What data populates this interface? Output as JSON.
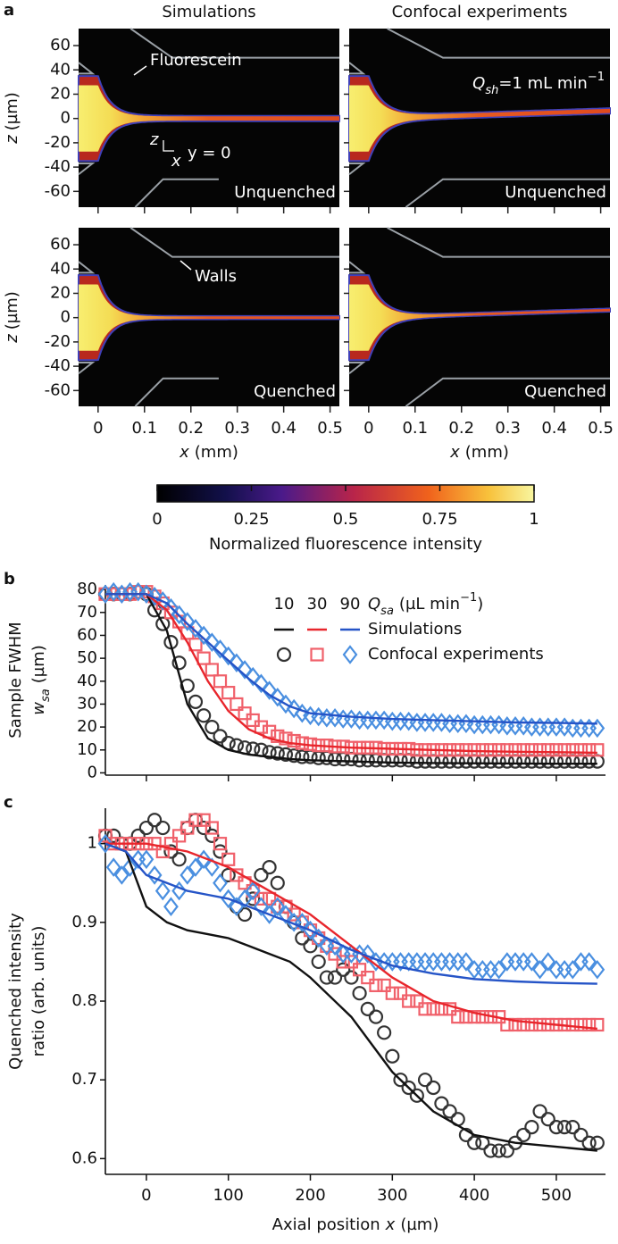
{
  "chart_data": [
    {
      "type": "heatmap",
      "panel_label": "a",
      "columns": [
        "Simulations",
        "Confocal experiments"
      ],
      "rows": [
        "Unquenched",
        "Quenched"
      ],
      "xlabel": [
        "x",
        "(mm)"
      ],
      "ylabel": [
        "z",
        "(µm)"
      ],
      "xlim": [
        -0.042,
        0.52
      ],
      "ylim": [
        -73,
        74
      ],
      "xticks": [
        0,
        0.1,
        0.2,
        0.3,
        0.4,
        0.5
      ],
      "yticks": [
        -60,
        -40,
        -20,
        0,
        20,
        40,
        60
      ],
      "annotations": {
        "fluorescein": "Fluorescein",
        "walls": "Walls",
        "axis_z": "z",
        "axis_x": "x",
        "plane": "y = 0",
        "flow": [
          "Q",
          "sh",
          "=1 mL min",
          "−1"
        ]
      },
      "colorbar": {
        "label": "Normalized fluorescence intensity",
        "lim": [
          0,
          1
        ],
        "ticks": [
          0,
          0.25,
          0.5,
          0.75,
          1
        ]
      }
    },
    {
      "type": "line",
      "panel_label": "b",
      "xlim": [
        -50,
        560
      ],
      "ylim": [
        -1,
        82
      ],
      "yticks": [
        0,
        10,
        20,
        30,
        40,
        50,
        60,
        70,
        80
      ],
      "ylabel": [
        "Sample FWHM",
        "w",
        "sa",
        "(µm)"
      ],
      "legend": {
        "title": [
          "Q",
          "sa",
          "(µL min",
          "−1",
          ")"
        ],
        "rows": [
          "Simulations",
          "Confocal experiments"
        ]
      },
      "x": [
        -50,
        -40,
        -30,
        -20,
        -10,
        0,
        10,
        20,
        30,
        40,
        50,
        60,
        70,
        80,
        90,
        100,
        110,
        120,
        130,
        140,
        150,
        160,
        170,
        180,
        190,
        200,
        210,
        220,
        230,
        240,
        250,
        260,
        270,
        280,
        290,
        300,
        310,
        320,
        330,
        340,
        350,
        360,
        370,
        380,
        390,
        400,
        410,
        420,
        430,
        440,
        450,
        460,
        470,
        480,
        490,
        500,
        510,
        520,
        530,
        540,
        550
      ],
      "series": [
        {
          "name": "10",
          "style": "circle",
          "color": "#333333",
          "values": [
            78,
            78,
            78,
            78,
            79,
            78,
            71,
            65,
            57,
            48,
            38,
            31,
            25,
            20,
            16,
            13,
            12,
            11,
            10.5,
            10,
            9,
            8.5,
            8,
            7.5,
            7,
            7,
            6.5,
            6.5,
            6,
            6,
            6,
            5.5,
            5.5,
            5.5,
            5.5,
            5.5,
            5.5,
            5.5,
            5,
            5,
            5,
            5,
            5,
            5,
            5,
            5,
            5,
            5,
            5,
            5,
            5,
            5,
            5,
            5,
            5,
            5,
            5,
            5,
            5,
            5,
            5
          ]
        },
        {
          "name": "30",
          "style": "square",
          "color": "#f0606a",
          "values": [
            78,
            78,
            78,
            78,
            79,
            79,
            77,
            74,
            70,
            66,
            61,
            56,
            50,
            45,
            40,
            35,
            30,
            26,
            23,
            20,
            18,
            16,
            15,
            14,
            13,
            12.5,
            12,
            12,
            11.5,
            11.5,
            11,
            11,
            11,
            11,
            10.5,
            10.5,
            10.5,
            10.5,
            10,
            10,
            10,
            10,
            10,
            10,
            10,
            10,
            10,
            10,
            10,
            10,
            10,
            10,
            10,
            10,
            10,
            10,
            10,
            10,
            10,
            10,
            10
          ]
        },
        {
          "name": "90",
          "style": "diamond",
          "color": "#4a8fe0",
          "values": [
            78,
            79,
            78,
            79,
            79,
            78,
            77,
            75,
            72,
            69,
            66,
            63,
            60,
            57,
            54,
            51,
            48,
            45,
            42,
            39,
            36,
            33,
            30,
            28,
            26,
            25,
            24.5,
            24,
            24,
            23.5,
            23.5,
            23,
            23,
            23,
            23,
            22.5,
            22.5,
            22.5,
            22,
            22,
            22,
            22,
            21.5,
            21.5,
            21.5,
            21,
            21,
            21,
            21,
            20.5,
            20.5,
            20.5,
            20,
            20,
            20,
            20,
            20,
            19.5,
            19.5,
            19.5,
            19.5
          ]
        },
        {
          "style": "line",
          "color": "#111111",
          "x": [
            -50,
            -25,
            0,
            25,
            50,
            75,
            100,
            125,
            150,
            175,
            200,
            250,
            300,
            350,
            400,
            450,
            500,
            550
          ],
          "values": [
            78,
            78,
            78,
            62,
            30,
            15,
            10,
            8,
            7,
            6,
            5.5,
            5,
            4.5,
            4.3,
            4.2,
            4.1,
            4,
            4
          ]
        },
        {
          "style": "line",
          "color": "#e8262c",
          "x": [
            -50,
            -25,
            0,
            25,
            50,
            75,
            100,
            125,
            150,
            175,
            200,
            250,
            300,
            350,
            400,
            450,
            500,
            550
          ],
          "values": [
            78,
            78,
            78,
            71,
            57,
            40,
            27,
            19,
            15,
            13,
            12,
            11,
            10.5,
            10,
            9.5,
            9.2,
            9,
            8.8
          ]
        },
        {
          "style": "line",
          "color": "#2554c7",
          "x": [
            -50,
            -25,
            0,
            25,
            50,
            75,
            100,
            125,
            150,
            175,
            200,
            250,
            300,
            350,
            400,
            450,
            500,
            550
          ],
          "values": [
            78,
            78,
            78,
            74,
            65,
            57,
            49,
            41,
            34,
            29,
            26,
            24.5,
            23.5,
            23,
            22.5,
            22,
            21.8,
            21.5
          ]
        }
      ]
    },
    {
      "type": "line",
      "panel_label": "c",
      "xlim": [
        -50,
        560
      ],
      "ylim": [
        0.58,
        1.045
      ],
      "yticks": [
        0.6,
        0.7,
        0.8,
        0.9,
        1
      ],
      "xticks": [
        0,
        100,
        200,
        300,
        400,
        500
      ],
      "xlabel": [
        "Axial position",
        "x",
        "(µm)"
      ],
      "ylabel": [
        "Quenched intensity",
        "ratio (arb. units)"
      ],
      "x": [
        -50,
        -40,
        -30,
        -20,
        -10,
        0,
        10,
        20,
        30,
        40,
        50,
        60,
        70,
        80,
        90,
        100,
        110,
        120,
        130,
        140,
        150,
        160,
        170,
        180,
        190,
        200,
        210,
        220,
        230,
        240,
        250,
        260,
        270,
        280,
        290,
        300,
        310,
        320,
        330,
        340,
        350,
        360,
        370,
        380,
        390,
        400,
        410,
        420,
        430,
        440,
        450,
        460,
        470,
        480,
        490,
        500,
        510,
        520,
        530,
        540,
        550
      ],
      "series": [
        {
          "style": "circle",
          "color": "#333333",
          "values": [
            1.01,
            1.01,
            1.0,
            1.0,
            1.01,
            1.02,
            1.03,
            1.02,
            0.99,
            0.98,
            1.02,
            1.03,
            1.02,
            1.01,
            0.99,
            0.96,
            0.92,
            0.91,
            0.93,
            0.96,
            0.97,
            0.95,
            0.92,
            0.9,
            0.88,
            0.87,
            0.85,
            0.83,
            0.83,
            0.84,
            0.83,
            0.81,
            0.79,
            0.78,
            0.76,
            0.73,
            0.7,
            0.69,
            0.68,
            0.7,
            0.69,
            0.67,
            0.66,
            0.65,
            0.63,
            0.62,
            0.62,
            0.61,
            0.61,
            0.61,
            0.62,
            0.63,
            0.64,
            0.66,
            0.65,
            0.64,
            0.64,
            0.64,
            0.63,
            0.62,
            0.62
          ]
        },
        {
          "style": "square",
          "color": "#f0606a",
          "values": [
            1.01,
            1.0,
            1.0,
            1.0,
            1.0,
            1.0,
            1.0,
            0.99,
            1.0,
            1.01,
            1.02,
            1.03,
            1.03,
            1.02,
            1.0,
            0.98,
            0.96,
            0.95,
            0.94,
            0.93,
            0.93,
            0.92,
            0.92,
            0.91,
            0.9,
            0.89,
            0.88,
            0.87,
            0.86,
            0.85,
            0.85,
            0.84,
            0.83,
            0.82,
            0.82,
            0.81,
            0.81,
            0.8,
            0.8,
            0.79,
            0.79,
            0.79,
            0.79,
            0.78,
            0.78,
            0.78,
            0.78,
            0.78,
            0.78,
            0.77,
            0.77,
            0.77,
            0.77,
            0.77,
            0.77,
            0.77,
            0.77,
            0.77,
            0.77,
            0.77,
            0.77
          ]
        },
        {
          "style": "diamond",
          "color": "#4a8fe0",
          "values": [
            1.0,
            0.97,
            0.96,
            0.97,
            0.98,
            0.98,
            0.96,
            0.94,
            0.92,
            0.94,
            0.96,
            0.97,
            0.98,
            0.97,
            0.95,
            0.93,
            0.92,
            0.93,
            0.94,
            0.92,
            0.91,
            0.92,
            0.91,
            0.9,
            0.9,
            0.89,
            0.88,
            0.87,
            0.87,
            0.86,
            0.86,
            0.86,
            0.86,
            0.85,
            0.85,
            0.85,
            0.85,
            0.85,
            0.85,
            0.85,
            0.85,
            0.85,
            0.85,
            0.85,
            0.85,
            0.84,
            0.84,
            0.84,
            0.84,
            0.85,
            0.85,
            0.85,
            0.85,
            0.84,
            0.85,
            0.84,
            0.84,
            0.84,
            0.85,
            0.85,
            0.84
          ]
        },
        {
          "style": "line",
          "color": "#111111",
          "x": [
            -50,
            -25,
            0,
            25,
            50,
            75,
            100,
            125,
            150,
            175,
            200,
            250,
            300,
            350,
            400,
            450,
            500,
            550
          ],
          "values": [
            1.0,
            0.99,
            0.92,
            0.9,
            0.89,
            0.885,
            0.88,
            0.87,
            0.86,
            0.85,
            0.83,
            0.78,
            0.71,
            0.66,
            0.63,
            0.62,
            0.615,
            0.61
          ]
        },
        {
          "style": "line",
          "color": "#e8262c",
          "x": [
            -50,
            -25,
            0,
            25,
            50,
            75,
            100,
            125,
            150,
            175,
            200,
            250,
            300,
            350,
            400,
            450,
            500,
            550
          ],
          "values": [
            1.0,
            1.0,
            1.0,
            0.995,
            0.99,
            0.98,
            0.97,
            0.955,
            0.94,
            0.925,
            0.91,
            0.87,
            0.83,
            0.8,
            0.785,
            0.775,
            0.77,
            0.765
          ]
        },
        {
          "style": "line",
          "color": "#2554c7",
          "x": [
            -50,
            -25,
            0,
            25,
            50,
            75,
            100,
            125,
            150,
            175,
            200,
            250,
            300,
            350,
            400,
            450,
            500,
            550
          ],
          "values": [
            1.0,
            0.99,
            0.96,
            0.95,
            0.94,
            0.935,
            0.93,
            0.92,
            0.91,
            0.9,
            0.89,
            0.865,
            0.845,
            0.835,
            0.828,
            0.825,
            0.823,
            0.822
          ]
        }
      ]
    }
  ]
}
